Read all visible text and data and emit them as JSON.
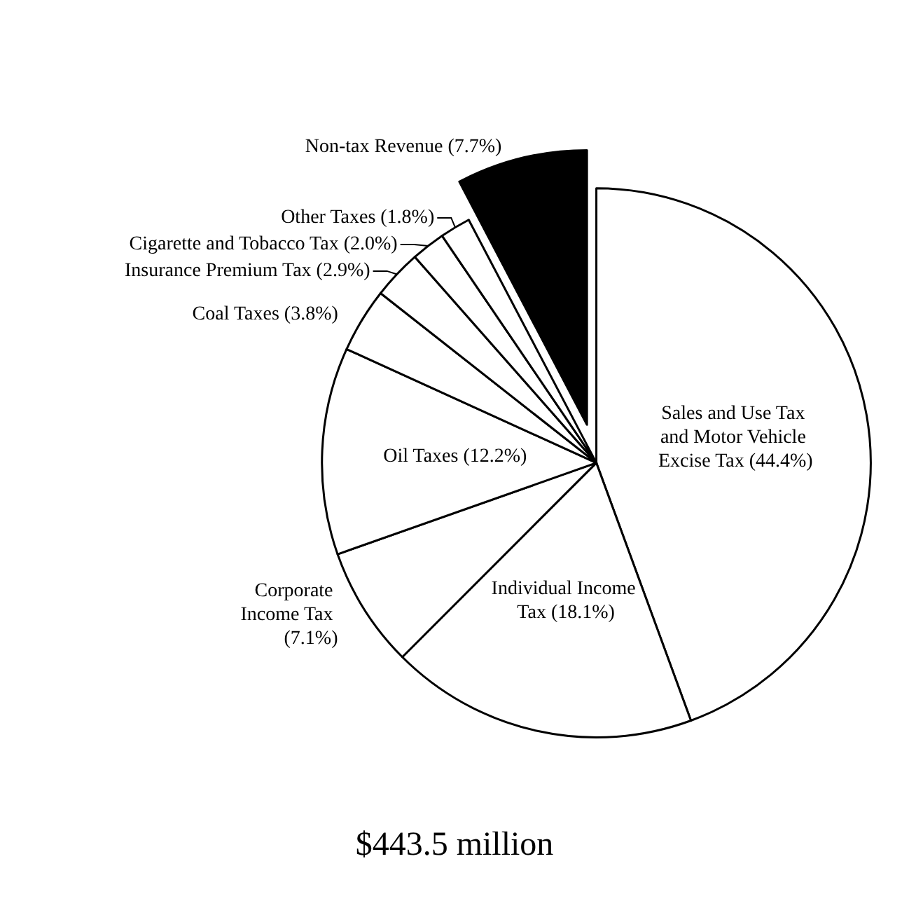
{
  "chart_data": {
    "type": "pie",
    "title": "$443.5 million",
    "categories": [
      "Sales and Use Tax and Motor Vehicle Excise Tax",
      "Individual Income Tax",
      "Corporate Income Tax",
      "Oil Taxes",
      "Coal Taxes",
      "Insurance Premium Tax",
      "Cigarette and Tobacco Tax",
      "Other Taxes",
      "Non-tax Revenue"
    ],
    "values": [
      44.4,
      18.1,
      7.1,
      12.2,
      3.8,
      2.9,
      2.0,
      1.8,
      7.7
    ],
    "value_labels": [
      "(44.4%)",
      "(18.1%)",
      "(7.1%)",
      "(12.2%)",
      "(3.8%)",
      "(2.9%)",
      "(2.0%)",
      "(1.8%)",
      "(7.7%)"
    ],
    "colors": [
      "#ffffff",
      "#ffffff",
      "#ffffff",
      "#ffffff",
      "#ffffff",
      "#ffffff",
      "#ffffff",
      "#ffffff",
      "#000000"
    ],
    "legend": false
  }
}
